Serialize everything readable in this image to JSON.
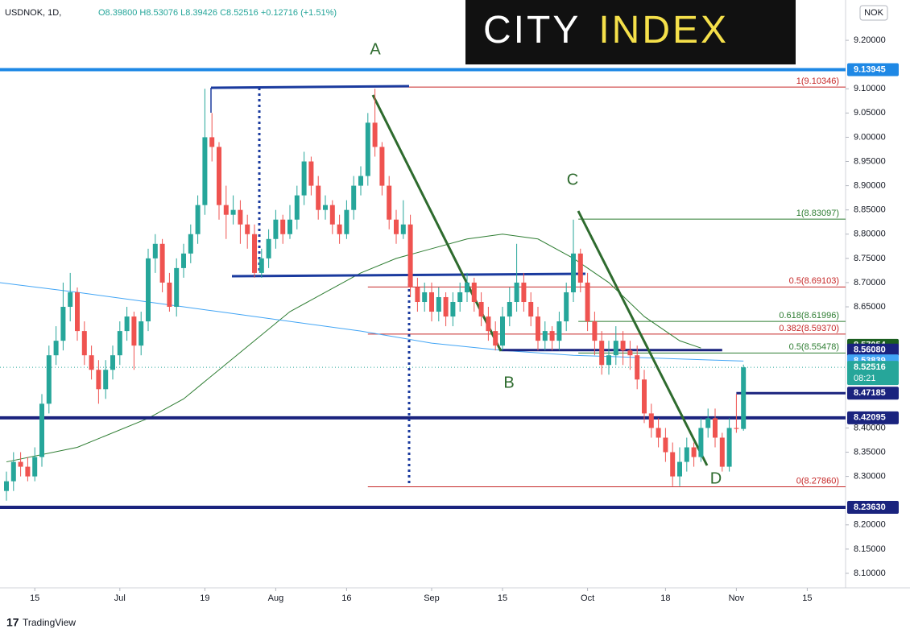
{
  "chart_data": {
    "type": "candlestick",
    "header": {
      "symbol": "USDNOK, 1D,",
      "ohlc": "O8.39800 H8.53076 L8.39426 C8.52516 +0.12716 (+1.51%)"
    },
    "logo": {
      "left": "CITY",
      "right": "INDEX"
    },
    "currency": "NOK",
    "footer": "TradingView",
    "up_color": "#26a69a",
    "down_color": "#ef5350",
    "ylim": [
      8.06,
      9.25
    ],
    "xlim": [
      -0.5,
      118.8
    ],
    "yticks": [
      {
        "value": 8.1,
        "label": "8.10000"
      },
      {
        "value": 8.15,
        "label": "8.15000"
      },
      {
        "value": 8.2,
        "label": "8.20000"
      },
      {
        "value": 8.3,
        "label": "8.30000"
      },
      {
        "value": 8.35,
        "label": "8.35000"
      },
      {
        "value": 8.4,
        "label": "8.40000"
      },
      {
        "value": 8.65,
        "label": "8.65000"
      },
      {
        "value": 8.7,
        "label": "8.70000"
      },
      {
        "value": 8.75,
        "label": "8.75000"
      },
      {
        "value": 8.8,
        "label": "8.80000"
      },
      {
        "value": 8.85,
        "label": "8.85000"
      },
      {
        "value": 8.9,
        "label": "8.90000"
      },
      {
        "value": 8.95,
        "label": "8.95000"
      },
      {
        "value": 9.0,
        "label": "9.00000"
      },
      {
        "value": 9.05,
        "label": "9.05000"
      },
      {
        "value": 9.1,
        "label": "9.10000"
      },
      {
        "value": 9.2,
        "label": "9.20000"
      }
    ],
    "xticks": [
      {
        "value": 4,
        "label": "15"
      },
      {
        "value": 16,
        "label": "Jul"
      },
      {
        "value": 28,
        "label": "19"
      },
      {
        "value": 38,
        "label": "Aug"
      },
      {
        "value": 48,
        "label": "16"
      },
      {
        "value": 60,
        "label": "Sep"
      },
      {
        "value": 70,
        "label": "15"
      },
      {
        "value": 82,
        "label": "Oct"
      },
      {
        "value": 93,
        "label": "18"
      },
      {
        "value": 103,
        "label": "Nov"
      },
      {
        "value": 113,
        "label": "15"
      }
    ],
    "grid": false,
    "candles": [
      [
        8.27,
        8.31,
        8.25,
        8.29
      ],
      [
        8.29,
        8.35,
        8.27,
        8.33
      ],
      [
        8.33,
        8.35,
        8.3,
        8.32
      ],
      [
        8.32,
        8.34,
        8.29,
        8.3
      ],
      [
        8.3,
        8.36,
        8.29,
        8.34
      ],
      [
        8.34,
        8.47,
        8.32,
        8.45
      ],
      [
        8.45,
        8.57,
        8.43,
        8.55
      ],
      [
        8.55,
        8.61,
        8.53,
        8.58
      ],
      [
        8.58,
        8.7,
        8.56,
        8.65
      ],
      [
        8.65,
        8.72,
        8.62,
        8.68
      ],
      [
        8.68,
        8.69,
        8.58,
        8.6
      ],
      [
        8.6,
        8.62,
        8.53,
        8.55
      ],
      [
        8.55,
        8.57,
        8.5,
        8.52
      ],
      [
        8.52,
        8.54,
        8.45,
        8.48
      ],
      [
        8.48,
        8.54,
        8.46,
        8.52
      ],
      [
        8.52,
        8.57,
        8.5,
        8.55
      ],
      [
        8.55,
        8.62,
        8.53,
        8.6
      ],
      [
        8.6,
        8.65,
        8.58,
        8.63
      ],
      [
        8.63,
        8.64,
        8.52,
        8.57
      ],
      [
        8.57,
        8.64,
        8.55,
        8.62
      ],
      [
        8.62,
        8.77,
        8.6,
        8.75
      ],
      [
        8.75,
        8.8,
        8.72,
        8.78
      ],
      [
        8.78,
        8.79,
        8.68,
        8.7
      ],
      [
        8.7,
        8.72,
        8.64,
        8.65
      ],
      [
        8.65,
        8.75,
        8.63,
        8.73
      ],
      [
        8.73,
        8.78,
        8.71,
        8.76
      ],
      [
        8.76,
        8.82,
        8.74,
        8.8
      ],
      [
        8.8,
        8.88,
        8.78,
        8.86
      ],
      [
        8.86,
        9.1,
        8.84,
        9.0
      ],
      [
        9.0,
        9.05,
        8.95,
        8.98
      ],
      [
        8.98,
        8.99,
        8.83,
        8.86
      ],
      [
        8.86,
        8.9,
        8.79,
        8.84
      ],
      [
        8.84,
        8.88,
        8.82,
        8.85
      ],
      [
        8.85,
        8.87,
        8.78,
        8.82
      ],
      [
        8.82,
        8.84,
        8.77,
        8.8
      ],
      [
        8.8,
        8.82,
        8.71,
        8.72
      ],
      [
        8.72,
        8.77,
        8.71,
        8.75
      ],
      [
        8.75,
        8.81,
        8.73,
        8.79
      ],
      [
        8.79,
        8.85,
        8.77,
        8.83
      ],
      [
        8.83,
        8.84,
        8.78,
        8.8
      ],
      [
        8.8,
        8.86,
        8.79,
        8.83
      ],
      [
        8.83,
        8.9,
        8.81,
        8.88
      ],
      [
        8.88,
        8.97,
        8.86,
        8.95
      ],
      [
        8.95,
        8.96,
        8.88,
        8.9
      ],
      [
        8.9,
        8.92,
        8.83,
        8.85
      ],
      [
        8.85,
        8.88,
        8.83,
        8.86
      ],
      [
        8.86,
        8.87,
        8.8,
        8.82
      ],
      [
        8.82,
        8.84,
        8.78,
        8.8
      ],
      [
        8.8,
        8.87,
        8.79,
        8.85
      ],
      [
        8.85,
        8.92,
        8.83,
        8.9
      ],
      [
        8.9,
        8.94,
        8.88,
        8.92
      ],
      [
        8.92,
        9.05,
        8.9,
        9.03
      ],
      [
        9.03,
        9.1,
        8.96,
        8.98
      ],
      [
        8.98,
        8.99,
        8.88,
        8.9
      ],
      [
        8.9,
        8.92,
        8.81,
        8.83
      ],
      [
        8.83,
        8.85,
        8.78,
        8.8
      ],
      [
        8.8,
        8.87,
        8.79,
        8.82
      ],
      [
        8.82,
        8.84,
        8.67,
        8.69
      ],
      [
        8.69,
        8.71,
        8.64,
        8.66
      ],
      [
        8.66,
        8.7,
        8.64,
        8.68
      ],
      [
        8.68,
        8.7,
        8.62,
        8.64
      ],
      [
        8.64,
        8.69,
        8.62,
        8.67
      ],
      [
        8.67,
        8.68,
        8.61,
        8.63
      ],
      [
        8.63,
        8.68,
        8.61,
        8.66
      ],
      [
        8.66,
        8.7,
        8.64,
        8.68
      ],
      [
        8.68,
        8.72,
        8.66,
        8.7
      ],
      [
        8.7,
        8.71,
        8.64,
        8.66
      ],
      [
        8.66,
        8.68,
        8.61,
        8.63
      ],
      [
        8.63,
        8.65,
        8.58,
        8.6
      ],
      [
        8.6,
        8.62,
        8.56,
        8.57
      ],
      [
        8.57,
        8.65,
        8.56,
        8.63
      ],
      [
        8.63,
        8.69,
        8.61,
        8.66
      ],
      [
        8.66,
        8.78,
        8.64,
        8.7
      ],
      [
        8.7,
        8.72,
        8.64,
        8.66
      ],
      [
        8.66,
        8.68,
        8.61,
        8.63
      ],
      [
        8.63,
        8.65,
        8.56,
        8.58
      ],
      [
        8.58,
        8.62,
        8.56,
        8.6
      ],
      [
        8.6,
        8.61,
        8.56,
        8.58
      ],
      [
        8.58,
        8.64,
        8.56,
        8.62
      ],
      [
        8.62,
        8.7,
        8.6,
        8.68
      ],
      [
        8.68,
        8.83,
        8.66,
        8.76
      ],
      [
        8.76,
        8.77,
        8.68,
        8.7
      ],
      [
        8.7,
        8.72,
        8.6,
        8.62
      ],
      [
        8.62,
        8.64,
        8.55,
        8.58
      ],
      [
        8.58,
        8.6,
        8.51,
        8.53
      ],
      [
        8.53,
        8.58,
        8.51,
        8.55
      ],
      [
        8.55,
        8.61,
        8.53,
        8.58
      ],
      [
        8.58,
        8.6,
        8.53,
        8.56
      ],
      [
        8.56,
        8.58,
        8.52,
        8.55
      ],
      [
        8.55,
        8.57,
        8.48,
        8.5
      ],
      [
        8.5,
        8.52,
        8.41,
        8.43
      ],
      [
        8.43,
        8.45,
        8.38,
        8.4
      ],
      [
        8.4,
        8.42,
        8.36,
        8.38
      ],
      [
        8.38,
        8.4,
        8.33,
        8.35
      ],
      [
        8.35,
        8.37,
        8.28,
        8.3
      ],
      [
        8.3,
        8.36,
        8.28,
        8.33
      ],
      [
        8.33,
        8.38,
        8.31,
        8.36
      ],
      [
        8.36,
        8.37,
        8.32,
        8.34
      ],
      [
        8.34,
        8.42,
        8.33,
        8.4
      ],
      [
        8.4,
        8.44,
        8.38,
        8.42
      ],
      [
        8.42,
        8.44,
        8.36,
        8.38
      ],
      [
        8.38,
        8.39,
        8.31,
        8.32
      ],
      [
        8.32,
        8.42,
        8.31,
        8.4
      ],
      [
        8.4,
        8.47,
        8.39,
        8.398
      ],
      [
        8.398,
        8.53076,
        8.39426,
        8.52516
      ]
    ],
    "series": [
      {
        "color": "#2e7d32",
        "x": [
          0,
          10,
          20,
          25,
          30,
          35,
          40,
          45,
          50,
          55,
          60,
          65,
          70,
          75,
          80,
          85,
          90,
          95,
          98
        ],
        "values": [
          8.33,
          8.36,
          8.42,
          8.46,
          8.52,
          8.58,
          8.64,
          8.68,
          8.72,
          8.75,
          8.77,
          8.79,
          8.8,
          8.79,
          8.75,
          8.7,
          8.63,
          8.58,
          8.565
        ]
      },
      {
        "color": "#42a5f5",
        "x": [
          -1,
          10,
          20,
          30,
          40,
          50,
          60,
          70,
          80,
          90,
          100,
          104
        ],
        "values": [
          8.7,
          8.68,
          8.66,
          8.64,
          8.62,
          8.6,
          8.575,
          8.56,
          8.55,
          8.545,
          8.54,
          8.538
        ]
      }
    ],
    "fibs": [
      {
        "value": 9.10346,
        "label": "1(9.10346)",
        "color": "#c62828",
        "from": 51
      },
      {
        "value": 8.69103,
        "label": "0.5(8.69103)",
        "color": "#c62828",
        "from": 51
      },
      {
        "value": 8.5937,
        "label": "0.382(8.59370)",
        "color": "#c62828",
        "from": 51
      },
      {
        "value": 8.2786,
        "label": "0(8.27860)",
        "color": "#c62828",
        "from": 51
      },
      {
        "value": 8.83097,
        "label": "1(8.83097)",
        "color": "#2e7d32",
        "from": 80.7
      },
      {
        "value": 8.61996,
        "label": "0.618(8.61996)",
        "color": "#2e7d32",
        "from": 80.7
      },
      {
        "value": 8.55478,
        "label": "0.5(8.55478)",
        "color": "#2e7d32",
        "from": 80.7
      }
    ],
    "price_labels": [
      {
        "value": 9.13945,
        "label": "9.13945",
        "color": "#1e88e5",
        "line": "full"
      },
      {
        "value": 8.57054,
        "label": "8.57054",
        "color": "#1b5e20"
      },
      {
        "value": 8.5608,
        "label": "8.56080",
        "color": "#1a237e",
        "line": "segment",
        "from": 69.8,
        "to": 101
      },
      {
        "value": 8.53839,
        "label": "8.53839",
        "color": "#42a5f5"
      },
      {
        "value": 8.52516,
        "label": "8.52516",
        "color": "#26a69a",
        "line": "dotted",
        "countdown": "08:21"
      },
      {
        "value": 8.47185,
        "label": "8.47185",
        "color": "#1a237e",
        "line": "segment",
        "from": 103,
        "to": 118.8
      },
      {
        "value": 8.42095,
        "label": "8.42095",
        "color": "#1a237e",
        "line": "full"
      },
      {
        "value": 8.2363,
        "label": "8.23630",
        "color": "#1a237e",
        "line": "full"
      }
    ],
    "annotations": [
      "A",
      "B",
      "C",
      "D"
    ]
  }
}
